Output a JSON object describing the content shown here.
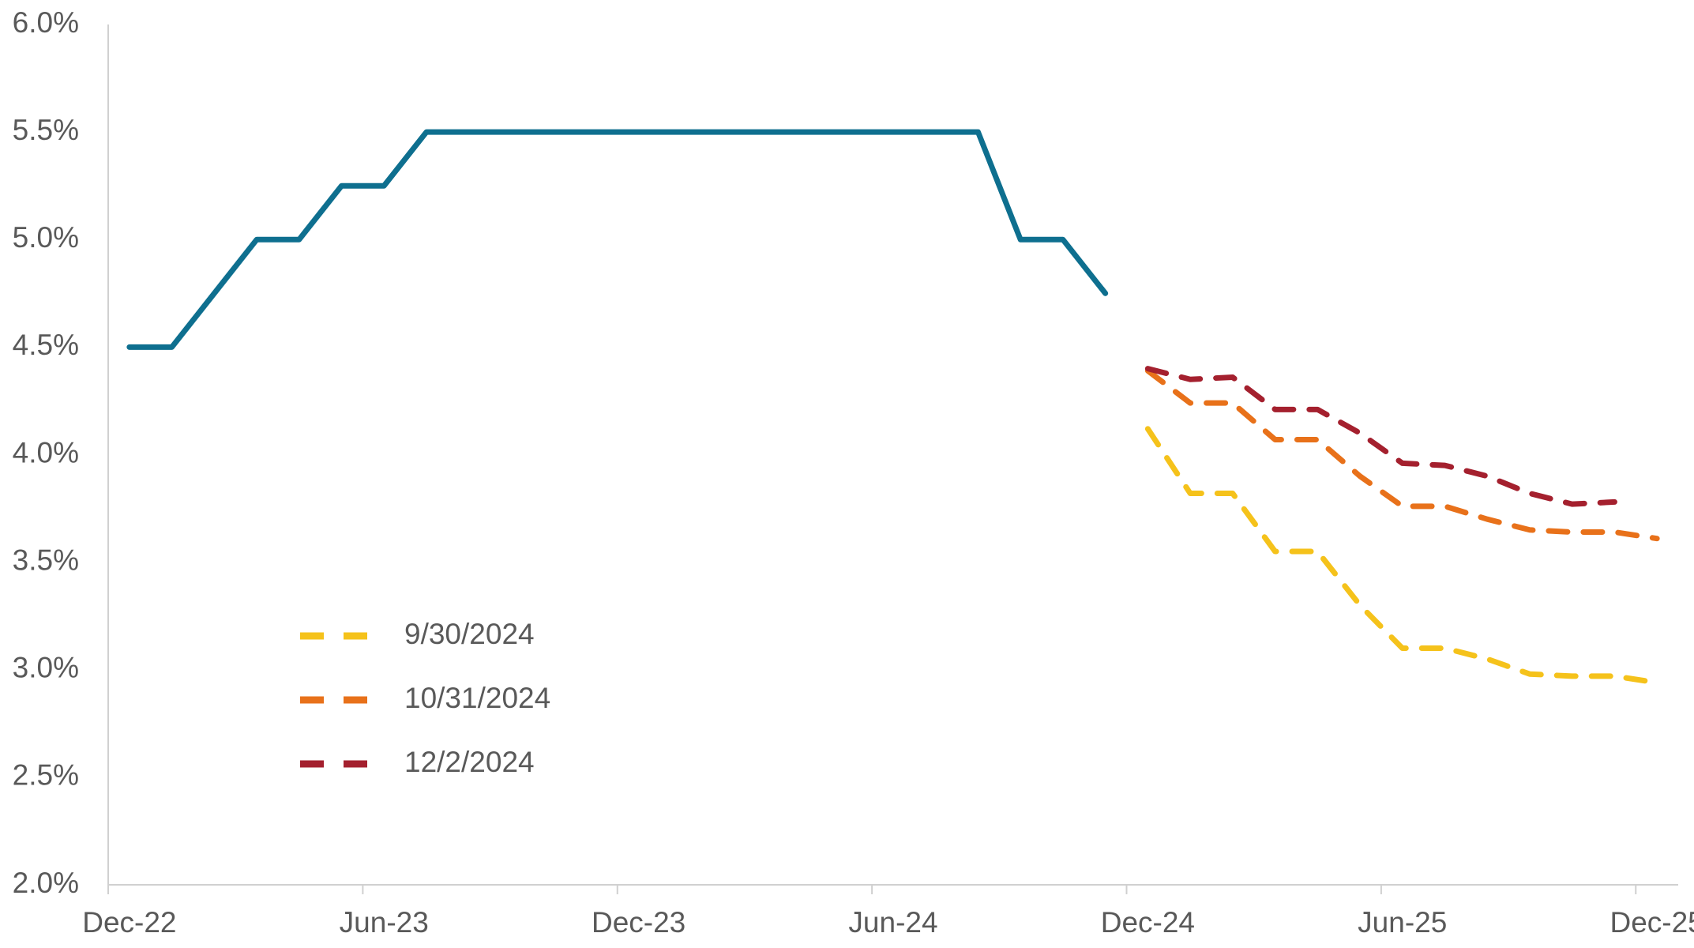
{
  "chart_data": {
    "type": "line",
    "categories": [
      "Dec-22",
      null,
      null,
      null,
      null,
      null,
      "Jun-23",
      null,
      null,
      null,
      null,
      null,
      "Dec-23",
      null,
      null,
      null,
      null,
      null,
      "Jun-24",
      null,
      null,
      null,
      null,
      null,
      "Dec-24",
      null,
      null,
      null,
      null,
      null,
      "Jun-25",
      null,
      null,
      null,
      null,
      null,
      "Dec-25"
    ],
    "series": [
      {
        "color": "#0e6f8f",
        "dashed": false,
        "values": [
          4.5,
          4.5,
          4.75,
          5.0,
          5.0,
          5.25,
          5.25,
          5.5,
          5.5,
          5.5,
          5.5,
          5.5,
          5.5,
          5.5,
          5.5,
          5.5,
          5.5,
          5.5,
          5.5,
          5.5,
          5.5,
          5.0,
          5.0,
          4.75,
          null,
          null,
          null,
          null,
          null,
          null,
          null,
          null,
          null,
          null,
          null,
          null,
          null
        ]
      },
      {
        "name": "9/30/2024",
        "color": "#f5c21b",
        "dashed": true,
        "values": [
          null,
          null,
          null,
          null,
          null,
          null,
          null,
          null,
          null,
          null,
          null,
          null,
          null,
          null,
          null,
          null,
          null,
          null,
          null,
          null,
          null,
          null,
          null,
          null,
          4.12,
          3.82,
          3.82,
          3.55,
          3.55,
          3.3,
          3.1,
          3.1,
          3.05,
          2.98,
          2.97,
          2.97,
          2.94
        ]
      },
      {
        "name": "10/31/2024",
        "color": "#e8711a",
        "dashed": true,
        "values": [
          null,
          null,
          null,
          null,
          null,
          null,
          null,
          null,
          null,
          null,
          null,
          null,
          null,
          null,
          null,
          null,
          null,
          null,
          null,
          null,
          null,
          null,
          null,
          null,
          4.39,
          4.24,
          4.24,
          4.07,
          4.07,
          3.9,
          3.76,
          3.76,
          3.7,
          3.65,
          3.64,
          3.64,
          3.61
        ]
      },
      {
        "name": "12/2/2024",
        "color": "#a4202e",
        "dashed": true,
        "values": [
          null,
          null,
          null,
          null,
          null,
          null,
          null,
          null,
          null,
          null,
          null,
          null,
          null,
          null,
          null,
          null,
          null,
          null,
          null,
          null,
          null,
          null,
          null,
          null,
          4.4,
          4.35,
          4.36,
          4.21,
          4.21,
          4.1,
          3.96,
          3.95,
          3.9,
          3.82,
          3.77,
          3.78,
          null
        ]
      }
    ],
    "ylim": [
      2.0,
      6.0
    ],
    "yticks": [
      {
        "value": 2.0,
        "label": "2.0%"
      },
      {
        "value": 2.5,
        "label": "2.5%"
      },
      {
        "value": 3.0,
        "label": "3.0%"
      },
      {
        "value": 3.5,
        "label": "3.5%"
      },
      {
        "value": 4.0,
        "label": "4.0%"
      },
      {
        "value": 4.5,
        "label": "4.5%"
      },
      {
        "value": 5.0,
        "label": "5.0%"
      },
      {
        "value": 5.5,
        "label": "5.5%"
      },
      {
        "value": 6.0,
        "label": "6.0%"
      }
    ],
    "grid": false,
    "legend": "lower-left"
  }
}
